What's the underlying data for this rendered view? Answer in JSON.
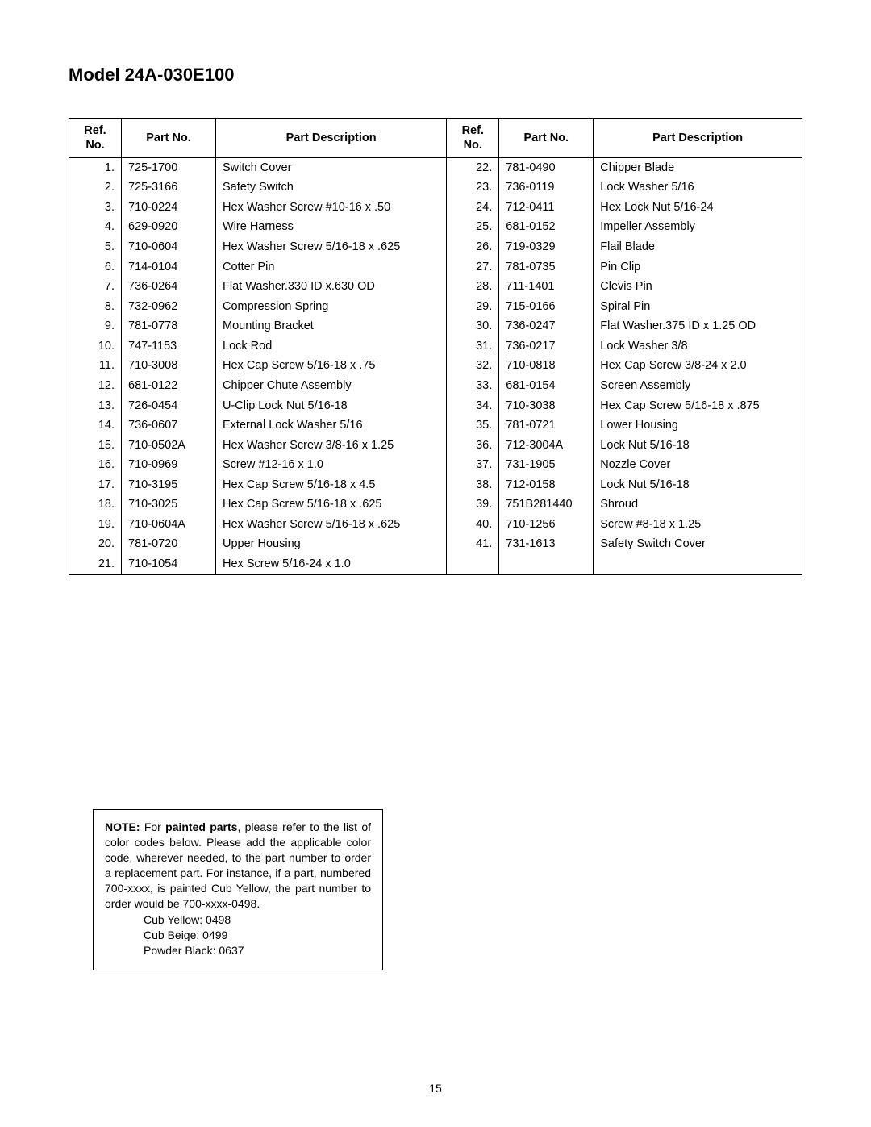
{
  "title": "Model 24A-030E100",
  "headers": {
    "ref": "Ref.\nNo.",
    "pn": "Part No.",
    "pd": "Part Description"
  },
  "left_rows": [
    {
      "ref": "1.",
      "pn": "725-1700",
      "pd": "Switch Cover"
    },
    {
      "ref": "2.",
      "pn": "725-3166",
      "pd": "Safety Switch"
    },
    {
      "ref": "3.",
      "pn": "710-0224",
      "pd": "Hex Washer Screw #10-16 x .50"
    },
    {
      "ref": "4.",
      "pn": "629-0920",
      "pd": "Wire Harness"
    },
    {
      "ref": "5.",
      "pn": "710-0604",
      "pd": "Hex Washer Screw 5/16-18 x .625"
    },
    {
      "ref": "6.",
      "pn": "714-0104",
      "pd": "Cotter Pin"
    },
    {
      "ref": "7.",
      "pn": "736-0264",
      "pd": "Flat Washer.330 ID x.630 OD"
    },
    {
      "ref": "8.",
      "pn": "732-0962",
      "pd": "Compression Spring"
    },
    {
      "ref": "9.",
      "pn": "781-0778",
      "pd": "Mounting Bracket"
    },
    {
      "ref": "10.",
      "pn": "747-1153",
      "pd": "Lock Rod"
    },
    {
      "ref": "11.",
      "pn": "710-3008",
      "pd": "Hex Cap Screw 5/16-18 x .75"
    },
    {
      "ref": "12.",
      "pn": "681-0122",
      "pd": "Chipper Chute Assembly"
    },
    {
      "ref": "13.",
      "pn": "726-0454",
      "pd": "U-Clip Lock Nut 5/16-18"
    },
    {
      "ref": "14.",
      "pn": "736-0607",
      "pd": "External Lock Washer 5/16"
    },
    {
      "ref": "15.",
      "pn": "710-0502A",
      "pd": "Hex Washer Screw 3/8-16 x 1.25"
    },
    {
      "ref": "16.",
      "pn": "710-0969",
      "pd": "Screw #12-16 x 1.0"
    },
    {
      "ref": "17.",
      "pn": "710-3195",
      "pd": "Hex Cap Screw 5/16-18 x 4.5"
    },
    {
      "ref": "18.",
      "pn": "710-3025",
      "pd": "Hex Cap Screw 5/16-18 x .625"
    },
    {
      "ref": "19.",
      "pn": "710-0604A",
      "pd": "Hex Washer Screw 5/16-18 x .625"
    },
    {
      "ref": "20.",
      "pn": "781-0720",
      "pd": "Upper Housing"
    },
    {
      "ref": "21.",
      "pn": "710-1054",
      "pd": "Hex Screw 5/16-24 x 1.0"
    }
  ],
  "right_rows": [
    {
      "ref": "22.",
      "pn": "781-0490",
      "pd": "Chipper Blade"
    },
    {
      "ref": "23.",
      "pn": "736-0119",
      "pd": "Lock Washer 5/16"
    },
    {
      "ref": "24.",
      "pn": "712-0411",
      "pd": "Hex Lock Nut 5/16-24"
    },
    {
      "ref": "25.",
      "pn": "681-0152",
      "pd": "Impeller Assembly"
    },
    {
      "ref": "26.",
      "pn": "719-0329",
      "pd": "Flail Blade"
    },
    {
      "ref": "27.",
      "pn": "781-0735",
      "pd": "Pin Clip"
    },
    {
      "ref": "28.",
      "pn": "711-1401",
      "pd": "Clevis Pin"
    },
    {
      "ref": "29.",
      "pn": "715-0166",
      "pd": "Spiral Pin"
    },
    {
      "ref": "30.",
      "pn": "736-0247",
      "pd": "Flat Washer.375 ID x 1.25 OD"
    },
    {
      "ref": "31.",
      "pn": "736-0217",
      "pd": "Lock Washer 3/8"
    },
    {
      "ref": "32.",
      "pn": "710-0818",
      "pd": "Hex Cap Screw 3/8-24 x 2.0"
    },
    {
      "ref": "33.",
      "pn": "681-0154",
      "pd": "Screen Assembly"
    },
    {
      "ref": "34.",
      "pn": "710-3038",
      "pd": "Hex Cap Screw 5/16-18 x .875"
    },
    {
      "ref": "35.",
      "pn": "781-0721",
      "pd": "Lower Housing"
    },
    {
      "ref": "36.",
      "pn": "712-3004A",
      "pd": "Lock Nut 5/16-18"
    },
    {
      "ref": "37.",
      "pn": "731-1905",
      "pd": "Nozzle Cover"
    },
    {
      "ref": "38.",
      "pn": "712-0158",
      "pd": "Lock Nut 5/16-18"
    },
    {
      "ref": "39.",
      "pn": "751B281440",
      "pd": "Shroud"
    },
    {
      "ref": "40.",
      "pn": "710-1256",
      "pd": "Screw #8-18 x 1.25"
    },
    {
      "ref": "41.",
      "pn": "731-1613",
      "pd": "Safety Switch Cover"
    },
    {
      "ref": "",
      "pn": "",
      "pd": ""
    }
  ],
  "note": {
    "label": "NOTE:",
    "label2": "painted parts",
    "body_pre": " For ",
    "body_post": ", please refer to the list of color codes below. Please add the applicable color code, wherever needed, to the part number to order a replacement part. For instance, if a part, numbered 700-xxxx, is painted Cub Yellow,  the part number to order would be 700-xxxx-0498.",
    "codes": [
      "Cub Yellow: 0498",
      "Cub Beige: 0499",
      "Powder Black: 0637"
    ]
  },
  "page_number": "15"
}
